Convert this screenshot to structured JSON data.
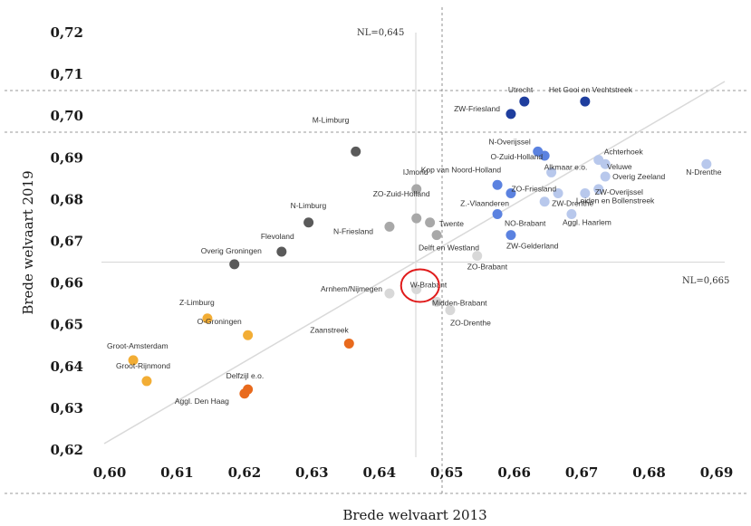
{
  "chart_data": {
    "type": "scatter",
    "title": "",
    "xlabel": "Brede welvaart 2013",
    "ylabel": "Brede welvaart 2019",
    "xlim": [
      0.6,
      0.69
    ],
    "ylim": [
      0.62,
      0.72
    ],
    "x_ticks": [
      "0,60",
      "0,61",
      "0,62",
      "0,63",
      "0,64",
      "0,65",
      "0,66",
      "0,67",
      "0,68",
      "0,69"
    ],
    "y_ticks": [
      "0,72",
      "0,71",
      "0,70",
      "0,69",
      "0,68",
      "0,67",
      "0,66",
      "0,65",
      "0,64",
      "0,63",
      "0,62"
    ],
    "grid": false,
    "reference_lines": [
      {
        "label": "NL=0,645",
        "orientation": "vertical",
        "value": 0.645
      },
      {
        "label": "NL=0,665",
        "orientation": "horizontal",
        "value": 0.665
      }
    ],
    "highlighted_point": "W-Brabant",
    "colors": {
      "navy": "#1f3e9e",
      "blue": "#5b82e0",
      "lightblue": "#b8c8ec",
      "darkgray": "#5a5a5a",
      "gray": "#a8a8a8",
      "lightgray": "#d8d8d8",
      "yellow": "#f2ad35",
      "orange": "#e86a1d",
      "highlight": "#e01b1b"
    },
    "points": [
      {
        "name": "Utrecht",
        "x": 0.6615,
        "y": 0.7035,
        "color": "navy"
      },
      {
        "name": "Het Gooi en Vechtstreek",
        "x": 0.6705,
        "y": 0.7035,
        "color": "navy"
      },
      {
        "name": "ZW-Friesland",
        "x": 0.6595,
        "y": 0.7005,
        "color": "navy"
      },
      {
        "name": "N-Overijssel",
        "x": 0.6635,
        "y": 0.6915,
        "color": "blue"
      },
      {
        "name": "O-Zuid-Holland",
        "x": 0.6645,
        "y": 0.6905,
        "color": "blue"
      },
      {
        "name": "Kop van Noord-Holland",
        "x": 0.6575,
        "y": 0.6835,
        "color": "blue"
      },
      {
        "name": "Z.-Vlaanderen",
        "x": 0.6595,
        "y": 0.6815,
        "color": "blue"
      },
      {
        "name": "NO-Brabant",
        "x": 0.6575,
        "y": 0.6765,
        "color": "blue"
      },
      {
        "name": "ZW-Gelderland",
        "x": 0.6595,
        "y": 0.6715,
        "color": "blue"
      },
      {
        "name": "Alkmaar e.o.",
        "x": 0.6655,
        "y": 0.6865,
        "color": "lightblue"
      },
      {
        "name": "Achterhoek",
        "x": 0.6725,
        "y": 0.6895,
        "color": "lightblue"
      },
      {
        "name": "Veluwe",
        "x": 0.6735,
        "y": 0.6885,
        "color": "lightblue"
      },
      {
        "name": "N-Drenthe",
        "x": 0.6885,
        "y": 0.6885,
        "color": "lightblue"
      },
      {
        "name": "Overig Zeeland",
        "x": 0.6735,
        "y": 0.6855,
        "color": "lightblue"
      },
      {
        "name": "ZO-Friesland",
        "x": 0.6665,
        "y": 0.6815,
        "color": "lightblue"
      },
      {
        "name": "ZW-Overijssel",
        "x": 0.6725,
        "y": 0.6825,
        "color": "lightblue"
      },
      {
        "name": "Leiden en Bollenstreek",
        "x": 0.6705,
        "y": 0.6815,
        "color": "lightblue"
      },
      {
        "name": "ZW-Drenthe",
        "x": 0.6645,
        "y": 0.6795,
        "color": "lightblue"
      },
      {
        "name": "Aggl. Haarlem",
        "x": 0.6685,
        "y": 0.6765,
        "color": "lightblue"
      },
      {
        "name": "M-Limburg",
        "x": 0.6365,
        "y": 0.6915,
        "color": "darkgray"
      },
      {
        "name": "N-Limburg",
        "x": 0.6295,
        "y": 0.6745,
        "color": "darkgray"
      },
      {
        "name": "Flevoland",
        "x": 0.6255,
        "y": 0.6675,
        "color": "darkgray"
      },
      {
        "name": "Overig Groningen",
        "x": 0.6185,
        "y": 0.6645,
        "color": "darkgray"
      },
      {
        "name": "IJmond",
        "x": 0.6455,
        "y": 0.6825,
        "color": "gray"
      },
      {
        "name": "ZO-Zuid-Holland",
        "x": 0.6455,
        "y": 0.6755,
        "color": "gray"
      },
      {
        "name": "Twente",
        "x": 0.6475,
        "y": 0.6745,
        "color": "gray"
      },
      {
        "name": "N-Friesland",
        "x": 0.6415,
        "y": 0.6735,
        "color": "gray"
      },
      {
        "name": "Delft en Westland",
        "x": 0.6485,
        "y": 0.6715,
        "color": "gray"
      },
      {
        "name": "ZO-Brabant",
        "x": 0.6545,
        "y": 0.6665,
        "color": "lightgray"
      },
      {
        "name": "Arnhem/Nijmegen",
        "x": 0.6415,
        "y": 0.6575,
        "color": "lightgray"
      },
      {
        "name": "W-Brabant",
        "x": 0.6455,
        "y": 0.6585,
        "color": "lightgray"
      },
      {
        "name": "Midden-Brabant",
        "x": 0.6485,
        "y": 0.6555,
        "color": "lightgray"
      },
      {
        "name": "ZO-Drenthe",
        "x": 0.6505,
        "y": 0.6535,
        "color": "lightgray"
      },
      {
        "name": "Z-Limburg",
        "x": 0.6145,
        "y": 0.6515,
        "color": "yellow"
      },
      {
        "name": "O-Groningen",
        "x": 0.6205,
        "y": 0.6475,
        "color": "yellow"
      },
      {
        "name": "Groot-Amsterdam",
        "x": 0.6035,
        "y": 0.6415,
        "color": "yellow"
      },
      {
        "name": "Groot-Rijnmond",
        "x": 0.6055,
        "y": 0.6365,
        "color": "yellow"
      },
      {
        "name": "Zaanstreek",
        "x": 0.6355,
        "y": 0.6455,
        "color": "orange"
      },
      {
        "name": "Delfzijl e.o.",
        "x": 0.6205,
        "y": 0.6345,
        "color": "orange"
      },
      {
        "name": "Aggl. Den Haag",
        "x": 0.62,
        "y": 0.6335,
        "color": "orange"
      }
    ]
  }
}
